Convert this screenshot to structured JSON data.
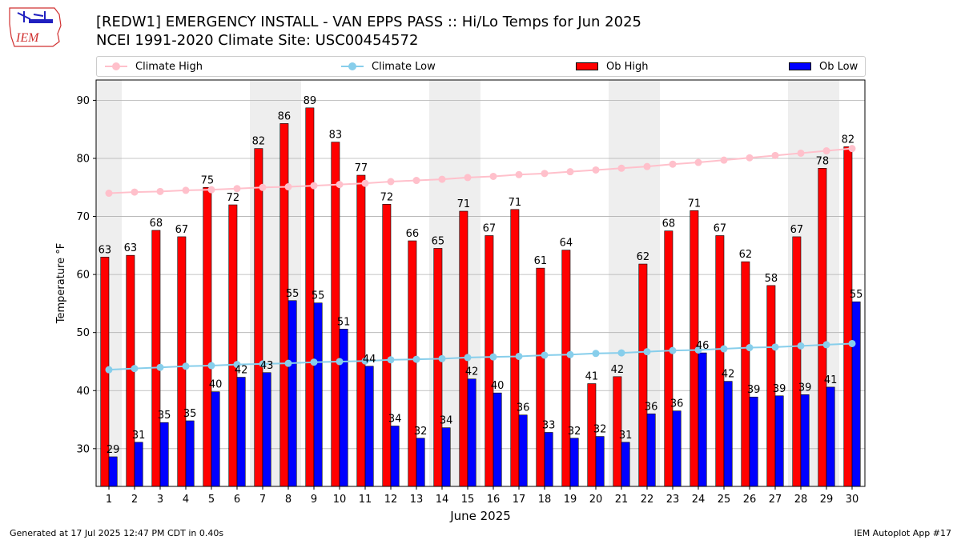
{
  "header": {
    "title_line1": "[REDW1] EMERGENCY INSTALL - VAN EPPS PASS :: Hi/Lo Temps for Jun 2025",
    "title_line2": "NCEI 1991-2020 Climate Site: USC00454572",
    "logo_text": "IEM"
  },
  "footer": {
    "generated": "Generated at 17 Jul 2025 12:47 PM CDT in 0.40s",
    "app": "IEM Autoplot App #17"
  },
  "colors": {
    "climate_high": "#ffc0cb",
    "climate_low": "#87ceeb",
    "ob_high": "#ff0000",
    "ob_low": "#0000ff",
    "weekend_band": "#eeeeee",
    "grid": "#b0b0b0"
  },
  "chart_data": {
    "type": "bar",
    "title": "[REDW1] EMERGENCY INSTALL - VAN EPPS PASS :: Hi/Lo Temps for Jun 2025",
    "xlabel": "June 2025",
    "ylabel": "Temperature °F",
    "ylim": [
      23.5,
      93.5
    ],
    "yticks": [
      30,
      40,
      50,
      60,
      70,
      80,
      90
    ],
    "grid": true,
    "legend_position": "top",
    "legend": [
      "Climate High",
      "Climate Low",
      "Ob High",
      "Ob Low"
    ],
    "categories": [
      1,
      2,
      3,
      4,
      5,
      6,
      7,
      8,
      9,
      10,
      11,
      12,
      13,
      14,
      15,
      16,
      17,
      18,
      19,
      20,
      21,
      22,
      23,
      24,
      25,
      26,
      27,
      28,
      29,
      30
    ],
    "shaded_days": [
      1,
      7,
      8,
      14,
      15,
      21,
      22,
      28,
      29
    ],
    "series": [
      {
        "name": "Ob High",
        "kind": "bar",
        "values": [
          63,
          63.3,
          67.6,
          66.5,
          75,
          72,
          81.7,
          86,
          88.7,
          82.8,
          77.1,
          72.1,
          65.8,
          64.5,
          70.9,
          66.7,
          71.2,
          61.1,
          64.2,
          41.2,
          42.4,
          61.8,
          67.5,
          71,
          66.7,
          62.2,
          58.1,
          66.5,
          78.3,
          82
        ],
        "labels": [
          63,
          63,
          68,
          67,
          75,
          72,
          82,
          86,
          89,
          83,
          77,
          72,
          66,
          65,
          71,
          67,
          71,
          61,
          64,
          41,
          42,
          62,
          68,
          71,
          67,
          62,
          58,
          67,
          78,
          82
        ]
      },
      {
        "name": "Ob Low",
        "kind": "bar",
        "values": [
          28.6,
          31.1,
          34.5,
          34.8,
          39.8,
          42.3,
          43.1,
          55.5,
          55.1,
          50.6,
          44.2,
          33.9,
          31.8,
          33.6,
          42,
          39.6,
          35.8,
          32.8,
          31.8,
          32.1,
          31.1,
          36,
          36.5,
          46.5,
          41.6,
          38.9,
          39.1,
          39.3,
          40.6,
          55.3
        ],
        "labels": [
          29,
          31,
          35,
          35,
          40,
          42,
          43,
          55,
          55,
          51,
          44,
          34,
          32,
          34,
          42,
          40,
          36,
          33,
          32,
          32,
          31,
          36,
          36,
          46,
          42,
          39,
          39,
          39,
          41,
          55
        ]
      },
      {
        "name": "Climate High",
        "kind": "line",
        "values": [
          74,
          74.2,
          74.3,
          74.5,
          74.6,
          74.8,
          75,
          75.1,
          75.3,
          75.5,
          75.7,
          76,
          76.2,
          76.4,
          76.7,
          76.9,
          77.2,
          77.4,
          77.7,
          78,
          78.3,
          78.6,
          79,
          79.3,
          79.7,
          80.1,
          80.5,
          80.9,
          81.3,
          81.7
        ]
      },
      {
        "name": "Climate Low",
        "kind": "line",
        "values": [
          43.6,
          43.8,
          44,
          44.2,
          44.3,
          44.5,
          44.6,
          44.7,
          44.9,
          45,
          45.1,
          45.3,
          45.4,
          45.5,
          45.7,
          45.8,
          45.9,
          46.1,
          46.2,
          46.4,
          46.5,
          46.7,
          46.9,
          47,
          47.2,
          47.4,
          47.5,
          47.7,
          47.9,
          48.1
        ]
      }
    ]
  }
}
